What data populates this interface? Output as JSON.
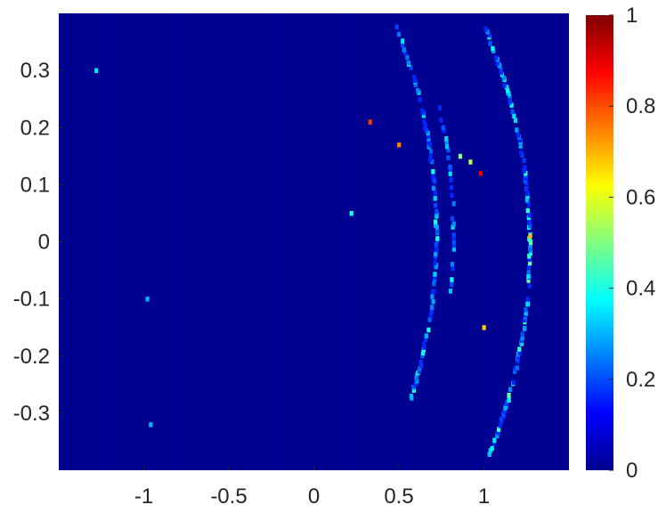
{
  "chart_data": {
    "type": "heatmap",
    "title": "",
    "xlabel": "",
    "ylabel": "",
    "xlim": [
      -1.5,
      1.5
    ],
    "ylim": [
      -0.4,
      0.4
    ],
    "xticks": [
      -1,
      -0.5,
      0,
      0.5,
      1
    ],
    "xtick_labels": [
      "-1",
      "-0.5",
      "0",
      "0.5",
      "1"
    ],
    "yticks": [
      0.3,
      0.2,
      0.1,
      0,
      -0.1,
      -0.2,
      -0.3
    ],
    "ytick_labels": [
      "0.3",
      "0.2",
      "0.1",
      "0",
      "-0.1",
      "-0.2",
      "-0.3"
    ],
    "background_value": 0,
    "colormap": "jet",
    "colorbar": {
      "range": [
        0,
        1
      ],
      "ticks": [
        0,
        0.2,
        0.4,
        0.6,
        0.8,
        1
      ],
      "tick_labels": [
        "0",
        "0.2",
        "0.4",
        "0.6",
        "0.8",
        "1"
      ]
    },
    "structure": "Henon-type attractor: a folded horseshoe of bright cells on a near-zero background",
    "curve_outer": {
      "vertex": [
        1.27,
        0.0
      ],
      "a": 1.8,
      "b": -0.03,
      "y_range": [
        -0.375,
        0.375
      ]
    },
    "curve_inner": {
      "vertex": [
        0.72,
        0.0
      ],
      "a": 1.8,
      "b": 0.05,
      "y_range": [
        -0.275,
        0.385
      ]
    },
    "curve_mid": {
      "vertex": [
        0.82,
        0.02
      ],
      "a": 1.8,
      "b": 0.0,
      "y_range": [
        -0.1,
        0.24
      ]
    },
    "hot_spots": [
      {
        "x": 0.33,
        "y": 0.21,
        "value": 0.82
      },
      {
        "x": 0.98,
        "y": 0.12,
        "value": 0.9
      },
      {
        "x": 0.5,
        "y": 0.17,
        "value": 0.75
      },
      {
        "x": 1.27,
        "y": 0.01,
        "value": 0.7
      },
      {
        "x": 1.0,
        "y": -0.15,
        "value": 0.68
      },
      {
        "x": 0.92,
        "y": 0.14,
        "value": 0.55
      },
      {
        "x": 0.86,
        "y": 0.15,
        "value": 0.5
      }
    ],
    "isolated_points": [
      {
        "x": 0.22,
        "y": 0.05,
        "value": 0.4
      },
      {
        "x": -0.98,
        "y": -0.1,
        "value": 0.3
      },
      {
        "x": -0.96,
        "y": -0.32,
        "value": 0.3
      },
      {
        "x": -1.28,
        "y": 0.3,
        "value": 0.35
      }
    ]
  }
}
